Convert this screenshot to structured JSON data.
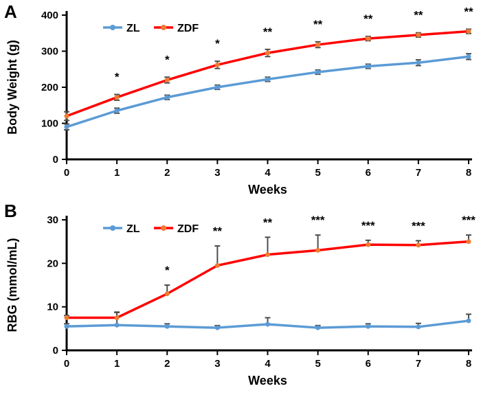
{
  "figure": {
    "background": "#ffffff",
    "accent_blue": "#5B9BD5",
    "accent_red": "#FF0000",
    "marker_orange": "#ED7D31",
    "error_bar_color": "#4d4d4d"
  },
  "chart_data": [
    {
      "type": "line",
      "panel_label": "A",
      "title": "",
      "xlabel": "Weeks",
      "ylabel": "Body Weight (g)",
      "x": [
        0,
        1,
        2,
        3,
        4,
        5,
        6,
        7,
        8
      ],
      "xticks": [
        0,
        1,
        2,
        3,
        4,
        5,
        6,
        7,
        8
      ],
      "xlim": [
        0,
        8
      ],
      "ylim": [
        0,
        400
      ],
      "yticks": [
        0,
        100,
        200,
        300,
        400
      ],
      "grid": false,
      "legend_position": "top-left-inside",
      "error_direction": "both",
      "series": [
        {
          "name": "ZL",
          "color": "#5B9BD5",
          "marker_color": "#5B9BD5",
          "values": [
            90,
            135,
            172,
            200,
            222,
            242,
            258,
            268,
            285
          ],
          "errors": [
            8,
            7,
            6,
            6,
            6,
            6,
            6,
            8,
            8
          ]
        },
        {
          "name": "ZDF",
          "color": "#FF0000",
          "marker_color": "#ED7D31",
          "values": [
            120,
            172,
            220,
            262,
            295,
            318,
            335,
            345,
            355
          ],
          "errors": [
            12,
            8,
            8,
            10,
            10,
            8,
            6,
            6,
            6
          ]
        }
      ],
      "significance": [
        "",
        "*",
        "*",
        "*",
        "**",
        "**",
        "**",
        "**",
        "**"
      ]
    },
    {
      "type": "line",
      "panel_label": "B",
      "title": "",
      "xlabel": "Weeks",
      "ylabel": "RBG (mmol/mL)",
      "x": [
        0,
        1,
        2,
        3,
        4,
        5,
        6,
        7,
        8
      ],
      "xticks": [
        0,
        1,
        2,
        3,
        4,
        5,
        6,
        7,
        8
      ],
      "xlim": [
        0,
        8
      ],
      "ylim": [
        0,
        30
      ],
      "yticks": [
        0,
        10,
        20,
        30
      ],
      "grid": false,
      "legend_position": "top-left-inside",
      "error_direction": "up",
      "series": [
        {
          "name": "ZL",
          "color": "#5B9BD5",
          "marker_color": "#5B9BD5",
          "values": [
            5.5,
            5.8,
            5.5,
            5.2,
            6.0,
            5.2,
            5.5,
            5.4,
            6.8
          ],
          "errors": [
            0.6,
            3.0,
            0.6,
            0.5,
            1.5,
            0.5,
            0.6,
            0.8,
            1.5
          ]
        },
        {
          "name": "ZDF",
          "color": "#FF0000",
          "marker_color": "#ED7D31",
          "values": [
            7.5,
            7.5,
            13.0,
            19.5,
            22.0,
            23.0,
            24.3,
            24.2,
            25.0
          ],
          "errors": [
            0.5,
            1.2,
            2.0,
            4.5,
            4.0,
            3.5,
            1.0,
            1.0,
            1.5
          ]
        }
      ],
      "significance": [
        "",
        "",
        "*",
        "**",
        "**",
        "***",
        "***",
        "***",
        "***"
      ]
    }
  ]
}
